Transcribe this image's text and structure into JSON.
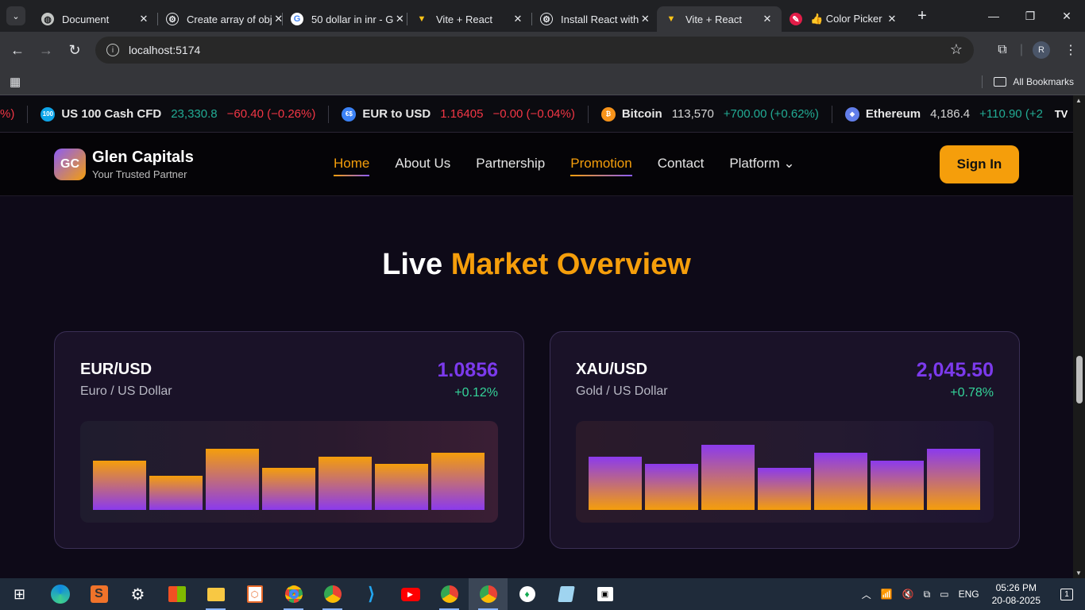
{
  "browser": {
    "tabs": [
      {
        "title": "Document",
        "icon": "globe-icon",
        "active": false
      },
      {
        "title": "Create array of obj",
        "icon": "chatgpt-icon",
        "active": false
      },
      {
        "title": "50 dollar in inr - G",
        "icon": "google-icon",
        "active": false
      },
      {
        "title": "Vite + React",
        "icon": "vite-icon",
        "active": false
      },
      {
        "title": "Install React with",
        "icon": "chatgpt-icon",
        "active": false
      },
      {
        "title": "Vite + React",
        "icon": "vite-icon",
        "active": true
      },
      {
        "title": "👍 Color Picker",
        "icon": "color-picker-icon",
        "active": false
      }
    ],
    "url": "localhost:5174",
    "profile_initial": "R",
    "all_bookmarks": "All Bookmarks"
  },
  "ticker": [
    {
      "name": "",
      "price": "",
      "change": "%)",
      "dir": "neg",
      "color": "#f23645"
    },
    {
      "name": "US 100 Cash CFD",
      "price": "23,330.8",
      "change": "−60.40 (−0.26%)",
      "dir": "neg",
      "icon_label": "100",
      "color": "#0ea5e9"
    },
    {
      "name": "EUR to USD",
      "price": "1.16405",
      "change": "−0.00 (−0.04%)",
      "dir": "neg",
      "icon_label": "€$",
      "color": "#3b82f6"
    },
    {
      "name": "Bitcoin",
      "price": "113,570",
      "change": "+700.00 (+0.62%)",
      "dir": "pos",
      "icon_label": "₿",
      "color": "#f7931a"
    },
    {
      "name": "Ethereum",
      "price": "4,186.4",
      "change": "+110.90 (+2",
      "dir": "pos",
      "icon_label": "◆",
      "color": "#627eea"
    }
  ],
  "header": {
    "logo": "GC",
    "brand": "Glen Capitals",
    "tagline": "Your Trusted Partner",
    "nav": [
      "Home",
      "About Us",
      "Partnership",
      "Promotion",
      "Contact",
      "Platform"
    ],
    "nav_platform_caret": "⌄",
    "signin": "Sign In"
  },
  "section": {
    "title_white": "Live ",
    "title_orange": "Market Overview"
  },
  "cards": [
    {
      "pair": "EUR/USD",
      "desc": "Euro / US Dollar",
      "price": "1.0856",
      "change": "+0.12%",
      "bars": [
        0.55,
        0.38,
        0.69,
        0.47,
        0.6,
        0.52,
        0.64
      ]
    },
    {
      "pair": "XAU/USD",
      "desc": "Gold / US Dollar",
      "price": "2,045.50",
      "change": "+0.78%",
      "bars": [
        0.6,
        0.52,
        0.73,
        0.47,
        0.64,
        0.55,
        0.69
      ]
    }
  ],
  "taskbar": {
    "apps": [
      "edge-icon",
      "sublime-icon",
      "settings-icon",
      "store-icon",
      "explorer-icon",
      "office-icon",
      "chrome-icon",
      "chrome-icon",
      "vscode-icon",
      "youtube-icon",
      "chrome-icon",
      "chrome-icon",
      "mongodb-icon",
      "notepad-icon",
      "cmd-icon"
    ],
    "lang": "ENG",
    "time": "05:26 PM",
    "date": "20-08-2025",
    "notifications": "1"
  },
  "colors": {
    "accent": "#f59e0b",
    "purple": "#7c3aed",
    "positive": "#34d399",
    "negative": "#f23645"
  }
}
